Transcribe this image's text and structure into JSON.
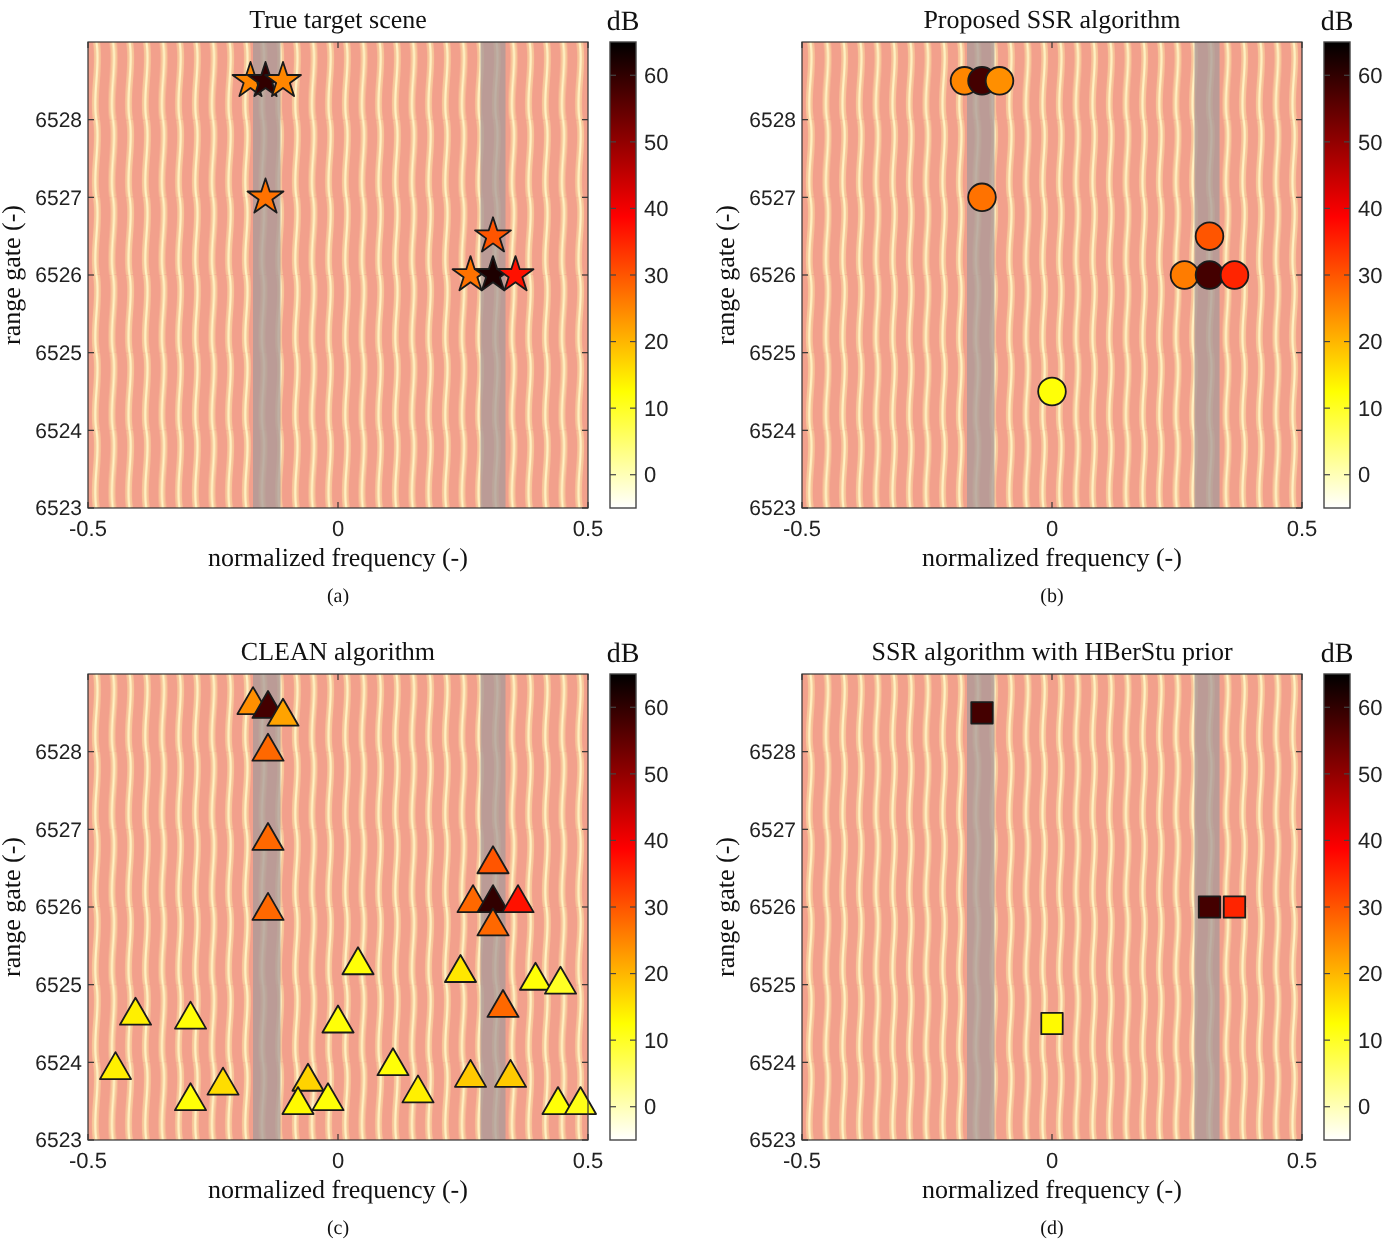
{
  "chart_data": [
    {
      "type": "scatter",
      "title": "True target scene",
      "xlabel": "normalized frequency (-)",
      "ylabel": "range gate (-)",
      "clabel": "dB",
      "marker": "star",
      "x": [
        -0.175,
        -0.145,
        -0.11,
        -0.145,
        0.31,
        0.265,
        0.31,
        0.355
      ],
      "values": [
        6528.5,
        6528.5,
        6528.5,
        6527,
        6526.5,
        6526,
        6526,
        6526
      ],
      "cvalues": [
        25,
        60,
        25,
        27,
        30,
        27,
        62,
        37
      ],
      "xlim": [
        -0.5,
        0.5
      ],
      "ylim": [
        6523,
        6529
      ],
      "xticks": [
        -0.5,
        0,
        0.5
      ],
      "yticks": [
        6523,
        6524,
        6525,
        6526,
        6527,
        6528
      ],
      "clim": [
        -5,
        65
      ],
      "cticks": [
        0,
        10,
        20,
        30,
        40,
        50,
        60
      ],
      "bands": [
        {
          "axis": "x",
          "from": -0.17,
          "to": -0.115,
          "color": "#a89a9a"
        },
        {
          "axis": "x",
          "from": 0.285,
          "to": 0.335,
          "color": "#a89a9a"
        }
      ],
      "annotations": [
        "(a)"
      ]
    },
    {
      "type": "scatter",
      "title": "Proposed SSR algorithm",
      "xlabel": "normalized frequency (-)",
      "ylabel": "range gate (-)",
      "clabel": "dB",
      "marker": "circle",
      "x": [
        -0.175,
        -0.14,
        -0.105,
        -0.14,
        0.315,
        0.265,
        0.315,
        0.365,
        0
      ],
      "values": [
        6528.5,
        6528.5,
        6528.5,
        6527,
        6526.5,
        6526,
        6526,
        6526,
        6524.5
      ],
      "cvalues": [
        25,
        58,
        24,
        27,
        30,
        26,
        58,
        35,
        12
      ],
      "xlim": [
        -0.5,
        0.5
      ],
      "ylim": [
        6523,
        6529
      ],
      "xticks": [
        -0.5,
        0,
        0.5
      ],
      "yticks": [
        6523,
        6524,
        6525,
        6526,
        6527,
        6528
      ],
      "clim": [
        -5,
        65
      ],
      "cticks": [
        0,
        10,
        20,
        30,
        40,
        50,
        60
      ],
      "bands": [
        {
          "axis": "x",
          "from": -0.17,
          "to": -0.115,
          "color": "#a89a9a"
        },
        {
          "axis": "x",
          "from": 0.285,
          "to": 0.335,
          "color": "#a89a9a"
        }
      ],
      "annotations": [
        "(b)"
      ]
    },
    {
      "type": "scatter",
      "title": "CLEAN algorithm",
      "xlabel": "normalized frequency (-)",
      "ylabel": "range gate (-)",
      "clabel": "dB",
      "marker": "triangle",
      "x": [
        -0.17,
        -0.14,
        -0.11,
        -0.14,
        -0.14,
        -0.14,
        0.31,
        0.27,
        0.31,
        0.36,
        0.31,
        0.04,
        0.245,
        0.395,
        0.445,
        0.33,
        -0.405,
        -0.295,
        0,
        -0.445,
        0.11,
        -0.23,
        -0.06,
        0.265,
        0.345,
        -0.295,
        0.16,
        -0.08,
        -0.02,
        0.44,
        0.485
      ],
      "values": [
        6528.6,
        6528.55,
        6528.45,
        6528,
        6526.85,
        6525.95,
        6526.55,
        6526.05,
        6526.05,
        6526.05,
        6525.75,
        6525.25,
        6525.15,
        6525.05,
        6525,
        6524.7,
        6524.6,
        6524.55,
        6524.5,
        6523.9,
        6523.95,
        6523.7,
        6523.75,
        6523.8,
        6523.8,
        6523.5,
        6523.6,
        6523.45,
        6523.5,
        6523.45,
        6523.45
      ],
      "cvalues": [
        24,
        58,
        22,
        28,
        28,
        28,
        30,
        28,
        60,
        37,
        28,
        12,
        15,
        12,
        10,
        28,
        14,
        12,
        12,
        14,
        12,
        16,
        17,
        18,
        18,
        12,
        14,
        13,
        12,
        12,
        11
      ],
      "xlim": [
        -0.5,
        0.5
      ],
      "ylim": [
        6523,
        6529
      ],
      "xticks": [
        -0.5,
        0,
        0.5
      ],
      "yticks": [
        6523,
        6524,
        6525,
        6526,
        6527,
        6528
      ],
      "clim": [
        -5,
        65
      ],
      "cticks": [
        0,
        10,
        20,
        30,
        40,
        50,
        60
      ],
      "bands": [
        {
          "axis": "x",
          "from": -0.17,
          "to": -0.115,
          "color": "#a89a9a"
        },
        {
          "axis": "x",
          "from": 0.285,
          "to": 0.335,
          "color": "#a89a9a"
        }
      ],
      "annotations": [
        "(c)"
      ]
    },
    {
      "type": "scatter",
      "title": "SSR algorithm with HBerStu prior",
      "xlabel": "normalized frequency (-)",
      "ylabel": "range gate (-)",
      "clabel": "dB",
      "marker": "square",
      "x": [
        -0.14,
        0.315,
        0.365,
        0
      ],
      "values": [
        6528.5,
        6526,
        6526,
        6524.5
      ],
      "cvalues": [
        58,
        58,
        35,
        13
      ],
      "xlim": [
        -0.5,
        0.5
      ],
      "ylim": [
        6523,
        6529
      ],
      "xticks": [
        -0.5,
        0,
        0.5
      ],
      "yticks": [
        6523,
        6524,
        6525,
        6526,
        6527,
        6528
      ],
      "clim": [
        -5,
        65
      ],
      "cticks": [
        0,
        10,
        20,
        30,
        40,
        50,
        60
      ],
      "bands": [
        {
          "axis": "x",
          "from": -0.17,
          "to": -0.115,
          "color": "#a89a9a"
        },
        {
          "axis": "x",
          "from": 0.285,
          "to": 0.335,
          "color": "#a89a9a"
        }
      ],
      "annotations": [
        "(d)"
      ]
    }
  ]
}
